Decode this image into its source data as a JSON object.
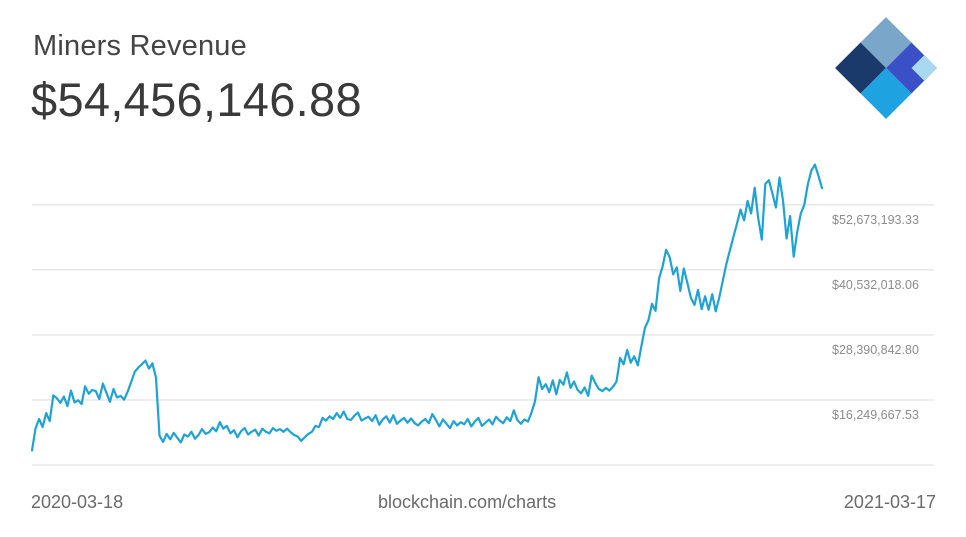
{
  "header": {
    "title": "Miners Revenue",
    "value": "$54,456,146.88"
  },
  "logo": {
    "icon": "blockchain-diamond-logo",
    "colors": [
      "#1a3a6b",
      "#7aa7c9",
      "#3b4fc6",
      "#1ea3e0",
      "#a9d9f0"
    ]
  },
  "footer": {
    "start_date": "2020-03-18",
    "source": "blockchain.com/charts",
    "end_date": "2021-03-17"
  },
  "colors": {
    "line": "#1ea3d4",
    "grid": "#dcdcdc",
    "tick_text": "#8c8c8c"
  },
  "chart_data": {
    "type": "line",
    "title": "Miners Revenue",
    "x_range": [
      "2020-03-18",
      "2021-03-17"
    ],
    "y_ticks": [
      16249667.53,
      28390842.8,
      40532018.06,
      52673193.33
    ],
    "y_tick_labels": [
      "$16,249,667.53",
      "$28,390,842.80",
      "$40,532,018.06",
      "$52,673,193.33"
    ],
    "ylim": [
      4100000,
      64800000
    ],
    "grid": true,
    "series": [
      {
        "values": [
          6800000,
          10900000,
          12700000,
          11200000,
          13800000,
          12300000,
          17100000,
          16600000,
          15700000,
          16900000,
          15100000,
          18000000,
          15800000,
          16200000,
          15500000,
          18800000,
          17400000,
          18100000,
          17900000,
          16400000,
          19300000,
          17600000,
          15900000,
          18300000,
          16700000,
          17000000,
          16300000,
          17800000,
          19600000,
          21500000,
          22300000,
          22900000,
          23600000,
          22100000,
          23100000,
          20400000,
          9600000,
          8400000,
          9900000,
          8900000,
          10100000,
          9200000,
          8300000,
          9800000,
          9400000,
          10300000,
          9000000,
          9700000,
          10800000,
          9900000,
          10200000,
          11100000,
          10400000,
          12100000,
          10900000,
          11400000,
          10000000,
          10600000,
          9300000,
          10400000,
          11000000,
          9800000,
          10300000,
          10700000,
          9600000,
          10900000,
          10300000,
          10000000,
          11000000,
          10500000,
          10800000,
          10300000,
          10900000,
          10200000,
          9700000,
          9400000,
          8600000,
          9300000,
          9900000,
          10300000,
          11400000,
          11200000,
          12900000,
          12400000,
          13200000,
          12700000,
          13800000,
          12900000,
          14100000,
          12700000,
          12500000,
          13300000,
          13900000,
          12400000,
          12800000,
          13100000,
          12300000,
          13400000,
          11600000,
          12600000,
          13200000,
          12000000,
          13400000,
          11800000,
          12400000,
          12900000,
          12000000,
          12800000,
          11900000,
          11500000,
          12200000,
          12700000,
          11900000,
          13600000,
          12500000,
          11300000,
          12600000,
          11800000,
          11000000,
          12300000,
          11500000,
          12100000,
          11700000,
          12700000,
          11300000,
          12200000,
          12900000,
          11400000,
          12000000,
          12600000,
          11700000,
          13100000,
          12400000,
          11900000,
          13000000,
          12300000,
          14300000,
          12500000,
          11800000,
          12600000,
          12200000,
          13900000,
          16000000,
          20500000,
          18300000,
          19200000,
          17700000,
          19900000,
          17300000,
          20000000,
          19100000,
          21400000,
          18500000,
          19700000,
          18100000,
          17500000,
          18600000,
          17000000,
          20800000,
          19400000,
          18300000,
          17900000,
          18500000,
          18000000,
          18700000,
          19700000,
          24100000,
          22900000,
          25600000,
          23200000,
          24400000,
          22700000,
          26200000,
          29700000,
          31100000,
          34200000,
          32900000,
          38900000,
          41200000,
          44300000,
          42900000,
          39700000,
          41000000,
          36600000,
          40800000,
          38100000,
          35300000,
          34000000,
          36800000,
          33200000,
          35600000,
          33100000,
          36000000,
          32800000,
          35400000,
          38500000,
          41600000,
          44200000,
          46700000,
          49200000,
          51800000,
          49800000,
          53400000,
          51100000,
          55900000,
          50200000,
          46200000,
          56600000,
          57300000,
          54800000,
          52200000,
          57800000,
          53500000,
          46400000,
          50600000,
          43000000,
          47600000,
          51000000,
          52700000,
          56500000,
          59100000,
          60200000,
          58100000,
          55800000
        ]
      }
    ]
  }
}
